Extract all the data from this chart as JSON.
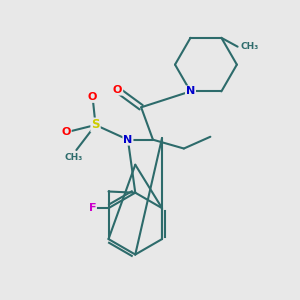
{
  "bg_color": "#e8e8e8",
  "bond_color": "#2d6b6b",
  "atom_colors": {
    "N": "#0000cc",
    "O": "#ff0000",
    "S": "#cccc00",
    "F": "#cc00cc",
    "C": "#2d6b6b"
  }
}
